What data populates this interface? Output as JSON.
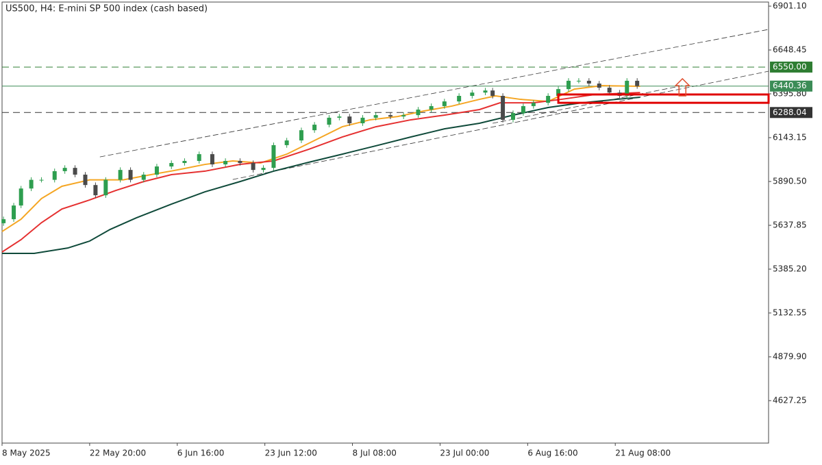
{
  "chart_data": {
    "type": "candlestick",
    "title": "US500, H4:  E-mini SP 500 index (cash based)",
    "xlim": [
      0,
      525
    ],
    "ylim": [
      4382.5,
      6924.8
    ],
    "xticks": [
      {
        "value": 0,
        "label": "8 May 2025"
      },
      {
        "value": 60,
        "label": "22 May 20:00"
      },
      {
        "value": 120,
        "label": "6 Jun 16:00"
      },
      {
        "value": 180,
        "label": "23 Jun 12:00"
      },
      {
        "value": 240,
        "label": "8 Jul 08:00"
      },
      {
        "value": 300,
        "label": "23 Jul 00:00"
      },
      {
        "value": 360,
        "label": "6 Aug 16:00"
      },
      {
        "value": 420,
        "label": "21 Aug 08:00"
      }
    ],
    "yticks": [
      {
        "value": 6901.1,
        "label": "6901.10"
      },
      6648.45,
      {
        "value": 6395.8,
        "label": "6395.80"
      },
      6143.15,
      {
        "value": 5890.5,
        "label": "5890.50"
      },
      5637.85,
      {
        "value": 5385.2,
        "label": "5385.20"
      },
      5132.55,
      {
        "value": 4879.9,
        "label": "4879.90"
      },
      4627.25
    ],
    "up_color": "#2e9e4f",
    "down_color": "#4a4a4a",
    "x": [
      1,
      8,
      13,
      20,
      27,
      36,
      43,
      50,
      57,
      64,
      71,
      81,
      88,
      97,
      106,
      116,
      125,
      135,
      144,
      153,
      163,
      172,
      179,
      186,
      195,
      205,
      214,
      224,
      231,
      238,
      247,
      256,
      266,
      275,
      285,
      294,
      303,
      313,
      322,
      331,
      336,
      343,
      350,
      357,
      364,
      374,
      381,
      388,
      395,
      402,
      409,
      416,
      423,
      428,
      435
    ],
    "open": [
      5650,
      5673,
      5752,
      5850,
      5900,
      5900,
      5950,
      5969,
      5930,
      5870,
      5811,
      5900,
      5957,
      5900,
      5930,
      5977,
      5997,
      6009,
      6048,
      5989,
      6009,
      5997,
      5957,
      5969,
      6100,
      6127,
      6186,
      6218,
      6258,
      6265,
      6226,
      6258,
      6273,
      6265,
      6273,
      6305,
      6325,
      6352,
      6384,
      6403,
      6415,
      6384,
      6246,
      6285,
      6325,
      6344,
      6384,
      6423,
      6471,
      6471,
      6455,
      6431,
      6403,
      6384,
      6471
    ],
    "high": [
      5688,
      5767,
      5865,
      5915,
      5915,
      5965,
      5984,
      5984,
      5945,
      5885,
      5915,
      5972,
      5972,
      5945,
      5992,
      6012,
      6024,
      6063,
      6063,
      6024,
      6024,
      6012,
      5984,
      6115,
      6142,
      6201,
      6233,
      6273,
      6280,
      6280,
      6273,
      6288,
      6288,
      6288,
      6320,
      6340,
      6367,
      6399,
      6418,
      6430,
      6430,
      6399,
      6300,
      6340,
      6359,
      6399,
      6438,
      6486,
      6486,
      6486,
      6470,
      6446,
      6418,
      6486,
      6486
    ],
    "low": [
      5635,
      5658,
      5737,
      5835,
      5885,
      5885,
      5935,
      5915,
      5855,
      5796,
      5796,
      5885,
      5885,
      5885,
      5915,
      5962,
      5982,
      5994,
      5974,
      5974,
      5982,
      5942,
      5942,
      5954,
      6085,
      6112,
      6171,
      6203,
      6243,
      6211,
      6211,
      6243,
      6250,
      6250,
      6258,
      6290,
      6310,
      6337,
      6369,
      6388,
      6369,
      6231,
      6231,
      6270,
      6310,
      6329,
      6369,
      6408,
      6456,
      6440,
      6416,
      6388,
      6369,
      6369,
      6425
    ],
    "close": [
      5673,
      5752,
      5850,
      5900,
      5900,
      5950,
      5969,
      5930,
      5870,
      5811,
      5900,
      5957,
      5900,
      5930,
      5977,
      5997,
      6009,
      6048,
      5989,
      6009,
      5997,
      5957,
      5969,
      6100,
      6127,
      6186,
      6218,
      6258,
      6265,
      6226,
      6258,
      6273,
      6265,
      6273,
      6305,
      6325,
      6352,
      6384,
      6403,
      6415,
      6384,
      6246,
      6285,
      6325,
      6344,
      6384,
      6423,
      6471,
      6471,
      6455,
      6431,
      6403,
      6384,
      6471,
      6440.36
    ],
    "series": [
      {
        "color": "#f5a623",
        "x": [
          0,
          13,
          27,
          41,
          60,
          83,
          102,
          120,
          139,
          158,
          177,
          195,
          214,
          233,
          252,
          271,
          289,
          308,
          327,
          338,
          355,
          374,
          392,
          411,
          437
        ],
        "values": [
          5602,
          5673,
          5792,
          5863,
          5900,
          5900,
          5930,
          5957,
          5989,
          6009,
          5997,
          6048,
          6127,
          6206,
          6246,
          6265,
          6297,
          6325,
          6364,
          6384,
          6364,
          6352,
          6423,
          6443,
          6439
        ]
      },
      {
        "color": "#e53030",
        "x": [
          0,
          13,
          27,
          41,
          60,
          78,
          97,
          116,
          139,
          163,
          186,
          210,
          233,
          256,
          280,
          303,
          327,
          341,
          364,
          383,
          406,
          437
        ],
        "values": [
          5484,
          5555,
          5653,
          5732,
          5784,
          5839,
          5890,
          5930,
          5950,
          5989,
          6009,
          6076,
          6147,
          6206,
          6246,
          6273,
          6305,
          6344,
          6344,
          6364,
          6392,
          6403
        ]
      },
      {
        "color": "#0f4a3a",
        "x": [
          0,
          22,
          45,
          60,
          74,
          92,
          116,
          139,
          163,
          186,
          210,
          233,
          256,
          280,
          303,
          327,
          350,
          374,
          397,
          421,
          437
        ],
        "values": [
          5476,
          5476,
          5507,
          5547,
          5614,
          5681,
          5760,
          5831,
          5890,
          5950,
          6001,
          6048,
          6096,
          6147,
          6194,
          6226,
          6273,
          6317,
          6344,
          6364,
          6376
        ]
      }
    ],
    "levels": [
      {
        "value": 6550,
        "label": "6550.00",
        "color": "#2e7d32",
        "style": "dashed"
      },
      {
        "value": 6440.36,
        "label": "6440.36",
        "color": "#3b8c56",
        "style": "solid"
      },
      {
        "value": 6288.04,
        "label": "6288.04",
        "color": "#333333",
        "style": "dashed"
      }
    ],
    "trendlines": [
      {
        "x": [
          67,
          525
        ],
        "y": [
          6032,
          6767
        ]
      },
      {
        "x": [
          158,
          525
        ],
        "y": [
          5902,
          6526
        ]
      },
      {
        "x": [
          336,
          466
        ],
        "y": [
          6226,
          6443
        ]
      }
    ],
    "zone": {
      "x": [
        381,
        525
      ],
      "y": [
        6344,
        6392
      ],
      "color": "#e00000"
    },
    "arrow": {
      "x": 466,
      "y": [
        6384,
        6483
      ],
      "color": "#e05030"
    }
  }
}
